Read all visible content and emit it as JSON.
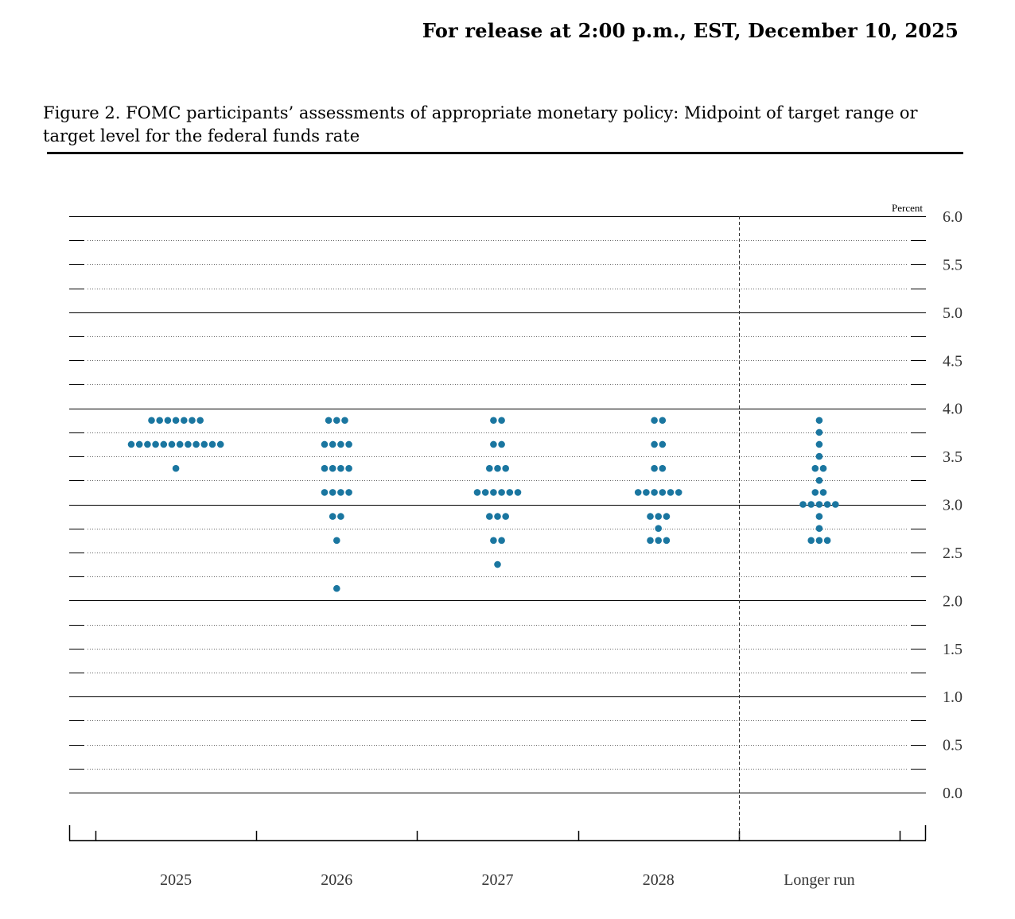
{
  "header": {
    "release": "For release at 2:00 p.m., EST, December 10, 2025"
  },
  "figure": {
    "title": "Figure 2. FOMC participants’ assessments of appropriate monetary policy: Midpoint of target range or target level for the federal funds rate"
  },
  "chart_data": {
    "type": "scatter",
    "title": "Figure 2. FOMC participants’ assessments of appropriate monetary policy: Midpoint of target range or target level for the federal funds rate",
    "ylabel": "Percent",
    "xlabel": "",
    "ylim": [
      0,
      6
    ],
    "yticks": [
      "6.0",
      "5.5",
      "5.0",
      "4.5",
      "4.0",
      "3.5",
      "3.0",
      "2.5",
      "2.0",
      "1.5",
      "1.0",
      "0.5",
      "0.0"
    ],
    "categories": [
      "2025",
      "2026",
      "2027",
      "2028",
      "Longer run"
    ],
    "dot_color": "#1a76a0",
    "series": [
      {
        "values": [
          {
            "y": 3.875,
            "count": 7
          },
          {
            "y": 3.625,
            "count": 12
          },
          {
            "y": 3.375,
            "count": 1
          }
        ]
      },
      {
        "values": [
          {
            "y": 3.875,
            "count": 3
          },
          {
            "y": 3.625,
            "count": 4
          },
          {
            "y": 3.375,
            "count": 4
          },
          {
            "y": 3.125,
            "count": 4
          },
          {
            "y": 2.875,
            "count": 2
          },
          {
            "y": 2.625,
            "count": 1
          },
          {
            "y": 2.125,
            "count": 1
          }
        ]
      },
      {
        "values": [
          {
            "y": 3.875,
            "count": 2
          },
          {
            "y": 3.625,
            "count": 2
          },
          {
            "y": 3.375,
            "count": 3
          },
          {
            "y": 3.125,
            "count": 6
          },
          {
            "y": 2.875,
            "count": 3
          },
          {
            "y": 2.625,
            "count": 2
          },
          {
            "y": 2.375,
            "count": 1
          }
        ]
      },
      {
        "values": [
          {
            "y": 3.875,
            "count": 2
          },
          {
            "y": 3.625,
            "count": 2
          },
          {
            "y": 3.375,
            "count": 2
          },
          {
            "y": 3.125,
            "count": 6
          },
          {
            "y": 2.875,
            "count": 3
          },
          {
            "y": 2.75,
            "count": 1
          },
          {
            "y": 2.625,
            "count": 3
          }
        ]
      },
      {
        "values": [
          {
            "y": 3.875,
            "count": 1
          },
          {
            "y": 3.75,
            "count": 1
          },
          {
            "y": 3.625,
            "count": 1
          },
          {
            "y": 3.5,
            "count": 1
          },
          {
            "y": 3.375,
            "count": 2
          },
          {
            "y": 3.25,
            "count": 1
          },
          {
            "y": 3.125,
            "count": 2
          },
          {
            "y": 3.0,
            "count": 5
          },
          {
            "y": 2.875,
            "count": 1
          },
          {
            "y": 2.75,
            "count": 1
          },
          {
            "y": 2.625,
            "count": 3
          }
        ]
      }
    ],
    "grid": true,
    "separator_before_last_category": true
  }
}
